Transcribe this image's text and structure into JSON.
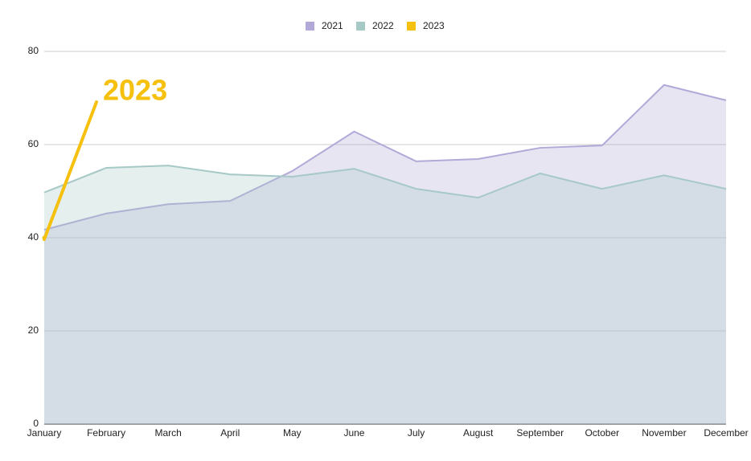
{
  "chart_data": {
    "type": "area",
    "categories": [
      "January",
      "February",
      "March",
      "April",
      "May",
      "June",
      "July",
      "August",
      "September",
      "October",
      "November",
      "December"
    ],
    "series": [
      {
        "name": "2021",
        "color": "#b3a9d8",
        "values": [
          41.7,
          45.2,
          47.2,
          47.9,
          54.3,
          62.8,
          56.4,
          56.9,
          59.3,
          59.8,
          72.8,
          69.5
        ]
      },
      {
        "name": "2022",
        "color": "#a6c9c6",
        "values": [
          49.7,
          55.0,
          55.5,
          53.6,
          53.1,
          54.8,
          50.5,
          48.6,
          53.8,
          50.5,
          53.4,
          50.5
        ]
      },
      {
        "name": "2023",
        "color": "#f6c00e",
        "values": [
          40,
          null,
          null,
          null,
          null,
          null,
          null,
          null,
          null,
          null,
          null,
          null
        ]
      }
    ],
    "ylim": [
      0,
      80
    ],
    "yticks": [
      0,
      20,
      40,
      60,
      80
    ],
    "grid": true,
    "legend": "top"
  }
}
